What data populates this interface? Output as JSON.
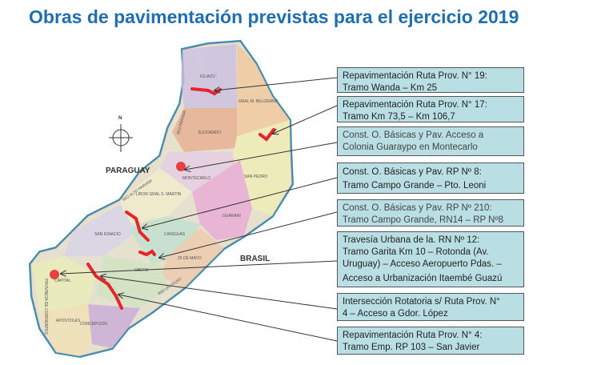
{
  "title": "Obras de pavimentación previstas para el ejercicio 2019",
  "map": {
    "countries": {
      "paraguay": "PARAGUAY",
      "brasil": "BRASIL"
    },
    "compass": "N",
    "departments": [
      "IGUAZÚ",
      "GRAL M. BELGRANO",
      "ELDORADO",
      "MONTECARLO",
      "SAN PEDRO",
      "LIBOR GRAL S. MARTIN",
      "GUARANI",
      "SAN IGNACIO",
      "CAINGUAS",
      "25 DE MAYO",
      "OBERA",
      "CAPITAL",
      "APOSTOLES",
      "CONCEPCION"
    ],
    "rivers": [
      "RIO PARANA",
      "RIO ALTO PARANA",
      "RIO URUGUAY"
    ],
    "province": "PROVINCIA DE CORRIENTES",
    "route_color": "#e8242a"
  },
  "projects": [
    {
      "lines": [
        "Repavimentación Ruta Prov. N° 19:",
        "Tramo Wanda – Km 25"
      ]
    },
    {
      "lines": [
        "Repavimentación Ruta Prov. N° 17:",
        "Tramo Km 73,5 – Km 106,7"
      ]
    },
    {
      "lines": [
        "Const. O. Básicas y Pav. Acceso a",
        "Colonia Guaraypo en Montecarlo"
      ]
    },
    {
      "lines": [
        "Const. O. Básicas y Pav. RP Nº 8:",
        "Tramo Campo Grande – Pto. Leoni"
      ]
    },
    {
      "lines": [
        "Const. O. Básicas y Pav. RP Nº 210:",
        "Tramo Campo Grande, RN14 – RP Nº8"
      ]
    },
    {
      "lines": [
        "Travesía Urbana de la. RN Nº 12:",
        "Tramo Garita Km 10 – Rotonda (Av.",
        "Uruguay) – Acceso Aeropuerto Pdas. –",
        "Acceso a Urbanización Itaembé Guazú"
      ]
    },
    {
      "lines": [
        "Intersección Rotatoria s/ Ruta Prov. N°",
        "4 – Acceso a Gdor. López"
      ]
    },
    {
      "lines": [
        "Repavimentación Ruta Prov. N° 4:",
        "Tramo Emp. RP 103 – San Javier"
      ]
    }
  ]
}
